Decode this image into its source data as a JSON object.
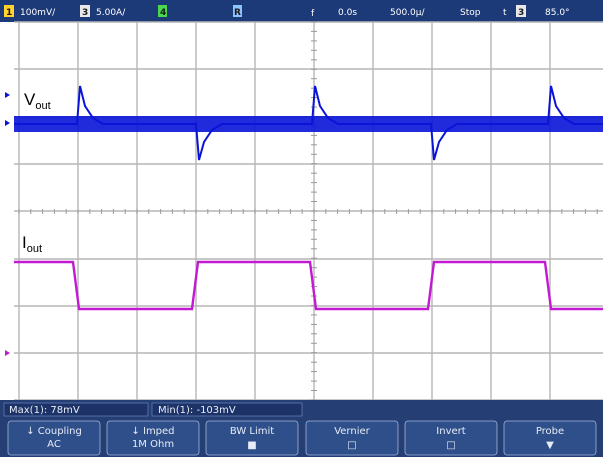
{
  "status_bar": {
    "ch1_number": "1",
    "ch1_scale": "100mV/",
    "ch3_number": "3",
    "ch3_scale": "5.00A/",
    "ch4_number": "4",
    "ch4_extra": "",
    "ch_r_number": "R",
    "trigger_glyph": "f",
    "delay": "0.0s",
    "timebase": "500.0µ/",
    "run_state": "Stop",
    "trigger_mode": "t",
    "trigger_source": "3",
    "trigger_level": "85.0°",
    "colors": {
      "background": "#1c3a78",
      "ch1": "#ffd22e",
      "ch3": "#e8e8e8",
      "ch4": "#49d84e",
      "ref": "#8fc4ff"
    }
  },
  "traces": [
    {
      "name_main": "V",
      "name_sub": "out",
      "color": "#0a14d8",
      "marker": "1"
    },
    {
      "name_main": "I",
      "name_sub": "out",
      "color": "#c21ad2",
      "marker": "3"
    }
  ],
  "measurements": {
    "max_label": "Max(1): 78mV",
    "min_label": "Min(1): -103mV"
  },
  "softkeys": [
    {
      "line1": "↓ Coupling",
      "line2": "AC"
    },
    {
      "line1": "↓   Imped",
      "line2": "1M Ohm"
    },
    {
      "line1": "BW Limit",
      "line2": "■"
    },
    {
      "line1": "Vernier",
      "line2": "□"
    },
    {
      "line1": "Invert",
      "line2": "□"
    },
    {
      "line1": "Probe",
      "line2": "▼"
    }
  ],
  "theme": {
    "grid_bg": "#ffffff",
    "grid_line": "#b6b6b6",
    "footer_bg": "#253e74",
    "softkey_bg": "#2f4f8a",
    "softkey_border": "#9fb6dd"
  }
}
